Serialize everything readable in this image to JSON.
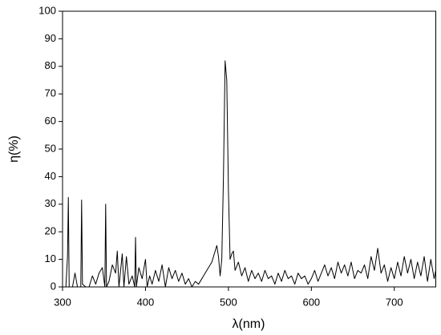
{
  "chart_data": {
    "type": "line",
    "x_label": "λ(nm)",
    "y_label": "η(%)",
    "x": [
      300,
      304,
      306,
      307,
      308,
      312,
      315,
      318,
      322,
      323,
      324,
      328,
      332,
      336,
      340,
      344,
      348,
      351,
      352,
      353,
      356,
      360,
      364,
      366,
      368,
      372,
      374,
      377,
      380,
      384,
      387,
      388,
      389,
      392,
      396,
      400,
      402,
      405,
      408,
      412,
      416,
      420,
      424,
      428,
      432,
      436,
      440,
      444,
      448,
      452,
      456,
      460,
      464,
      468,
      472,
      476,
      480,
      484,
      486,
      488,
      490,
      492,
      494,
      496,
      498,
      500,
      502,
      504,
      506,
      508,
      512,
      516,
      520,
      524,
      528,
      532,
      536,
      540,
      544,
      548,
      552,
      556,
      560,
      564,
      568,
      572,
      576,
      580,
      584,
      588,
      592,
      596,
      600,
      604,
      608,
      612,
      616,
      620,
      624,
      628,
      632,
      636,
      640,
      644,
      648,
      652,
      656,
      660,
      664,
      668,
      672,
      676,
      680,
      684,
      688,
      692,
      696,
      700,
      704,
      708,
      712,
      716,
      720,
      724,
      728,
      732,
      736,
      740,
      744,
      748,
      750
    ],
    "series": [
      {
        "color": "#000000",
        "values": [
          0,
          0,
          11,
          32.5,
          0,
          0,
          5,
          0,
          0,
          31.5,
          1,
          0,
          0,
          4,
          1,
          5,
          7,
          0,
          30,
          0,
          2,
          8,
          5,
          13,
          0,
          12,
          0,
          11,
          1,
          4,
          0,
          18,
          0,
          7,
          3,
          10,
          0,
          4,
          1,
          6,
          2,
          8,
          0,
          7,
          3,
          6,
          2,
          5,
          1,
          3,
          0,
          2,
          1,
          3,
          5,
          7,
          9,
          13,
          15,
          11,
          4,
          10,
          40,
          82,
          75,
          35,
          10,
          12,
          13,
          6,
          9,
          4,
          7,
          2,
          6,
          3,
          5,
          2,
          6,
          3,
          4,
          1,
          5,
          2,
          6,
          3,
          4,
          1,
          5,
          3,
          4,
          1,
          3,
          6,
          2,
          5,
          8,
          4,
          7,
          3,
          9,
          5,
          8,
          4,
          9,
          3,
          6,
          5,
          8,
          3,
          11,
          6,
          14,
          5,
          8,
          2,
          7,
          3,
          9,
          4,
          11,
          5,
          10,
          3,
          9,
          4,
          11,
          2,
          10,
          3,
          6
        ]
      }
    ],
    "xlim": [
      300,
      750
    ],
    "ylim": [
      0,
      100
    ],
    "xticks": [
      300,
      400,
      500,
      600,
      700
    ],
    "yticks": [
      0,
      10,
      20,
      30,
      40,
      50,
      60,
      70,
      80,
      90,
      100
    ]
  }
}
